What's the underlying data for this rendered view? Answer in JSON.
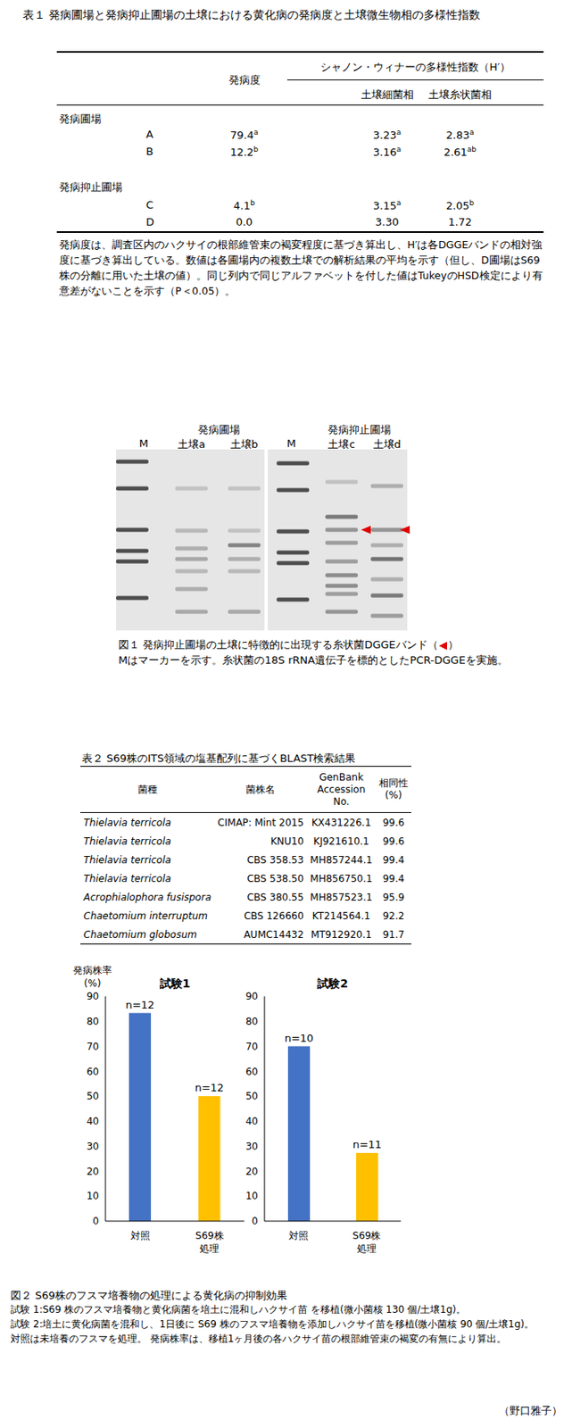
{
  "table1": {
    "title": "表１ 発病圃場と発病抑止圃場の土壌における黄化病の発病度と土壌微生物相の多様性指数",
    "columns": {
      "disease": "発病度",
      "diversity": "シャノン・ウィナーの多様性指数（H′）",
      "bacteria": "土壌細菌相",
      "fungi": "土壌糸状菌相"
    },
    "groups": [
      {
        "name": "発病圃場",
        "rows": [
          {
            "label": "A",
            "cells": [
              [
                "79.4",
                "a"
              ],
              [
                "3.23",
                "a"
              ],
              [
                "2.83",
                "a"
              ]
            ]
          },
          {
            "label": "B",
            "cells": [
              [
                "12.2",
                "b"
              ],
              [
                "3.16",
                "a"
              ],
              [
                "2.61",
                "ab"
              ]
            ]
          }
        ]
      },
      {
        "name": "発病抑止圃場",
        "rows": [
          {
            "label": "C",
            "cells": [
              [
                "4.1",
                "b"
              ],
              [
                "3.15",
                "a"
              ],
              [
                "2.05",
                "b"
              ]
            ]
          },
          {
            "label": "D",
            "cells": [
              [
                "0.0"
              ],
              [
                "3.30"
              ],
              [
                "1.72"
              ]
            ]
          }
        ]
      }
    ],
    "note": "発病度は、調査区内のハクサイの根部維管束の褐変程度に基づき算出し、H′は各DGGEバンドの相対強度に基づき算出している。数値は各圃場内の複数土壌での解析結果の平均を示す（但し、D圃場はS69株の分離に用いた土壌の値）。同じ列内で同じアルファベットを付した値はTukeyのHSD検定により有意差がないことを示す（P＜0.05）。"
  },
  "figure1": {
    "groups": [
      "発病圃場",
      "発病抑止圃場"
    ],
    "lanes": [
      "M",
      "土壌a",
      "土壌b",
      "M",
      "土壌c",
      "土壌d"
    ],
    "caption_parts": [
      "図１ 発病抑止圃場の土壌に特徴的に出現する糸状菌DGGEバンド（",
      "）"
    ],
    "caption_line2": "Mはマーカーを示す。糸状菌の18S rRNA遺伝子を標的としたPCR-DGGEを実施。"
  },
  "table2": {
    "title": "表２ S69株のITS領域の塩基配列に基づくBLAST検索結果",
    "columns": [
      "菌種",
      "菌株名",
      "GenBank\nAccession\nNo.",
      "相同性\n(%)"
    ],
    "rows": [
      [
        "Thielavia terricola",
        "CIMAP: Mint 2015",
        "KX431226.1",
        "99.6"
      ],
      [
        "Thielavia terricola",
        "KNU10",
        "KJ921610.1",
        "99.6"
      ],
      [
        "Thielavia terricola",
        "CBS 358.53",
        "MH857244.1",
        "99.4"
      ],
      [
        "Thielavia terricola",
        "CBS 538.50",
        "MH856750.1",
        "99.4"
      ],
      [
        "Acrophialophora fusispora",
        "CBS 380.55",
        "MH857523.1",
        "95.9"
      ],
      [
        "Chaetomium interruptum",
        "CBS 126660",
        "KT214564.1",
        "92.2"
      ],
      [
        "Chaetomium globosum",
        "AUMC14432",
        "MT912920.1",
        "91.7"
      ]
    ]
  },
  "chart_data": [
    {
      "type": "bar",
      "title": "試験1",
      "y_label": "発病株率\n(%)",
      "categories": [
        "対照",
        "S69株\n処理"
      ],
      "values": [
        83.3,
        50
      ],
      "colors": [
        "#4472c4",
        "#ffc000"
      ],
      "n_labels": [
        "n=12",
        "n=12"
      ],
      "ylim": [
        0,
        90
      ],
      "yticks": [
        0,
        10,
        20,
        30,
        40,
        50,
        60,
        70,
        80,
        90
      ],
      "grid": false
    },
    {
      "type": "bar",
      "title": "試験2",
      "categories": [
        "対照",
        "S69株\n処理"
      ],
      "values": [
        70,
        27.3
      ],
      "colors": [
        "#4472c4",
        "#ffc000"
      ],
      "n_labels": [
        "n=10",
        "n=11"
      ],
      "ylim": [
        0,
        90
      ],
      "yticks": [
        0,
        10,
        20,
        30,
        40,
        50,
        60,
        70,
        80,
        90
      ],
      "grid": false
    }
  ],
  "figure2_caption": [
    "図２ S69株のフスマ培養物の処理による黄化病の抑制効果",
    "試験 1:S69 株のフスマ培養物と黄化病菌を培土に混和しハクサイ苗 を移植(微小菌核 130 個/土壌1g)。",
    "試験 2:培土に黄化病菌を混和し、1日後に S69 株のフスマ培養物を添加しハクサイ苗を移植(微小菌核 90 個/土壌1g)。",
    "対照は未培養のフスマを処理。 発病株率は、移植1ヶ月後の各ハクサイ苗の根部維管束の褐変の有無により算出。"
  ],
  "author": "（野口雅子）"
}
